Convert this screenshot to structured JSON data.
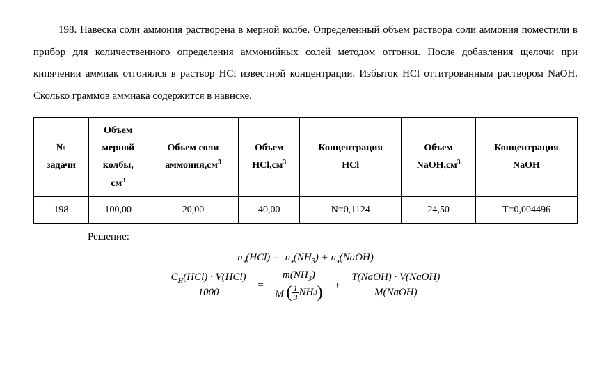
{
  "problem": {
    "number": "198.",
    "text": "Навеска соли аммония растворена в мерной колбе. Определенный объем раствора соли аммония поместили в прибор для количественного определения аммонийных солей методом отгонки. После добавления щелочи при кипячении аммиак отгонялся в раствор HCl известной концентрации. Избыток HCl оттитрованным раствором NaOH. Сколько граммов аммиака содержится в навнске."
  },
  "table": {
    "headers": {
      "col1_line1": "№",
      "col1_line2": "задачи",
      "col2_line1": "Объем",
      "col2_line2": "мерной",
      "col2_line3": "колбы,",
      "col2_line4": "см",
      "col3_line1": "Объем соли",
      "col3_line2": "аммония,см",
      "col4_line1": "Объем",
      "col4_line2": "HCl,см",
      "col5_line1": "Концентрация",
      "col5_line2": "HCl",
      "col6_line1": "Объем",
      "col6_line2": "NaOH,см",
      "col7_line1": "Концентрация",
      "col7_line2": "NaOH"
    },
    "row": {
      "num": "198",
      "flask_vol": "100,00",
      "salt_vol": "20,00",
      "hcl_vol": "40,00",
      "hcl_conc": "N=0,1124",
      "naoh_vol": "24,50",
      "naoh_conc": "T=0,004496"
    }
  },
  "solution_label": "Решение:",
  "formulas": {
    "line1": {
      "n_e": "n",
      "sub_e": "э",
      "hcl": "(HCl)",
      "eq": " = ",
      "nh3": "(NH",
      "nh3_sub": "3",
      "nh3_close": ")",
      "plus": " + ",
      "naoh": "(NaOH)"
    },
    "line2": {
      "frac1_num_c": "C",
      "frac1_num_h": "H",
      "frac1_num_rest": "(HCl) · V(HCl)",
      "frac1_den": "1000",
      "eq": "=",
      "frac2_num": "m(NH",
      "frac2_num_sub": "3",
      "frac2_num_close": ")",
      "frac2_den_m": "M",
      "frac2_den_inner_num": "1",
      "frac2_den_inner_den": "3",
      "frac2_den_nh": "NH",
      "frac2_den_nh_sub": "3",
      "plus": "+",
      "frac3_num": "T(NaOH) · V(NaOH)",
      "frac3_den": "M(NaOH)"
    }
  }
}
